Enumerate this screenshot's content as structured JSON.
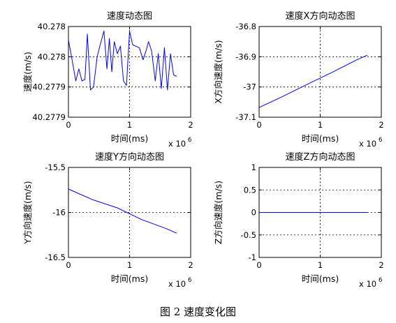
{
  "figure_caption": "图 2  速度变化图",
  "chart_data": [
    {
      "type": "line",
      "title": "速度动态图",
      "xlabel": "时间(ms)",
      "ylabel": "速度(m/s)",
      "x_multiplier": "x 10",
      "x_multiplier_exp": "6",
      "xlim": [
        0,
        2
      ],
      "ylim": [
        0,
        3
      ],
      "xticks": [
        {
          "v": 0,
          "label": "0"
        },
        {
          "v": 1,
          "label": "1"
        },
        {
          "v": 2,
          "label": "2"
        }
      ],
      "yticks": [
        {
          "v": 3,
          "label": "40.278"
        },
        {
          "v": 2,
          "label": "40.278"
        },
        {
          "v": 1,
          "label": "40.2779"
        },
        {
          "v": 0,
          "label": "40.2779"
        }
      ],
      "grid": true,
      "line_color": "#0000ff",
      "series": [
        {
          "x": [
            0,
            0.05,
            0.12,
            0.17,
            0.22,
            0.27,
            0.31,
            0.36,
            0.41,
            0.47,
            0.52,
            0.58,
            0.63,
            0.67,
            0.71,
            0.75,
            0.8,
            0.85,
            0.9,
            0.95,
            1.0,
            1.05,
            1.1,
            1.16,
            1.22,
            1.27,
            1.31,
            1.36,
            1.42,
            1.47,
            1.52,
            1.57,
            1.62,
            1.67,
            1.72,
            1.77
          ],
          "y": [
            2.55,
            2.0,
            1.2,
            1.6,
            1.2,
            1.25,
            2.75,
            0.9,
            1.0,
            2.0,
            2.4,
            2.85,
            1.6,
            2.6,
            1.5,
            2.5,
            2.1,
            2.35,
            1.2,
            1.05,
            2.85,
            2.4,
            2.35,
            2.3,
            1.9,
            2.2,
            2.5,
            2.2,
            1.2,
            2.1,
            0.95,
            2.3,
            0.9,
            2.1,
            1.4,
            1.35
          ]
        }
      ]
    },
    {
      "type": "line",
      "title": "速度X方向动态图",
      "xlabel": "时间(ms)",
      "ylabel": "X方向速度(m/s)",
      "x_multiplier": "x 10",
      "x_multiplier_exp": "6",
      "xlim": [
        0,
        2
      ],
      "ylim": [
        -37.1,
        -36.8
      ],
      "xticks": [
        {
          "v": 0,
          "label": "0"
        },
        {
          "v": 1,
          "label": "1"
        },
        {
          "v": 2,
          "label": "2"
        }
      ],
      "yticks": [
        {
          "v": -36.8,
          "label": "-36.8"
        },
        {
          "v": -36.9,
          "label": "-36.9"
        },
        {
          "v": -37.0,
          "label": "-37"
        },
        {
          "v": -37.1,
          "label": "-37.1"
        }
      ],
      "grid": true,
      "line_color": "#0000ff",
      "series": [
        {
          "x": [
            0,
            0.4,
            0.8,
            1.2,
            1.6,
            1.77
          ],
          "y": [
            -37.068,
            -37.03,
            -36.99,
            -36.951,
            -36.91,
            -36.895
          ]
        }
      ]
    },
    {
      "type": "line",
      "title": "速度Y方向动态图",
      "xlabel": "时间(ms)",
      "ylabel": "Y方向速度(m/s)",
      "x_multiplier": "x 10",
      "x_multiplier_exp": "6",
      "xlim": [
        0,
        2
      ],
      "ylim": [
        -16.5,
        -15.5
      ],
      "xticks": [
        {
          "v": 0,
          "label": "0"
        },
        {
          "v": 1,
          "label": "1"
        },
        {
          "v": 2,
          "label": "2"
        }
      ],
      "yticks": [
        {
          "v": -15.5,
          "label": "-15.5"
        },
        {
          "v": -16.0,
          "label": "-16"
        },
        {
          "v": -16.5,
          "label": "-16.5"
        }
      ],
      "grid": true,
      "line_color": "#0000ff",
      "series": [
        {
          "x": [
            0,
            0.4,
            0.8,
            1.2,
            1.6,
            1.77
          ],
          "y": [
            -15.74,
            -15.86,
            -15.95,
            -16.08,
            -16.18,
            -16.23
          ]
        }
      ]
    },
    {
      "type": "line",
      "title": "速度Z方向动态图",
      "xlabel": "时间(ms)",
      "ylabel": "Z方向速度(m/s)",
      "x_multiplier": "x 10",
      "x_multiplier_exp": "6",
      "xlim": [
        0,
        2
      ],
      "ylim": [
        -1,
        1
      ],
      "xticks": [
        {
          "v": 0,
          "label": "0"
        },
        {
          "v": 1,
          "label": "1"
        },
        {
          "v": 2,
          "label": "2"
        }
      ],
      "yticks": [
        {
          "v": 1,
          "label": "1"
        },
        {
          "v": 0.5,
          "label": "0.5"
        },
        {
          "v": 0,
          "label": "0"
        },
        {
          "v": -0.5,
          "label": "-0.5"
        },
        {
          "v": -1,
          "label": "-1"
        }
      ],
      "grid": true,
      "line_color": "#0000ff",
      "series": [
        {
          "x": [
            0,
            1.77
          ],
          "y": [
            0,
            0
          ]
        }
      ]
    }
  ]
}
